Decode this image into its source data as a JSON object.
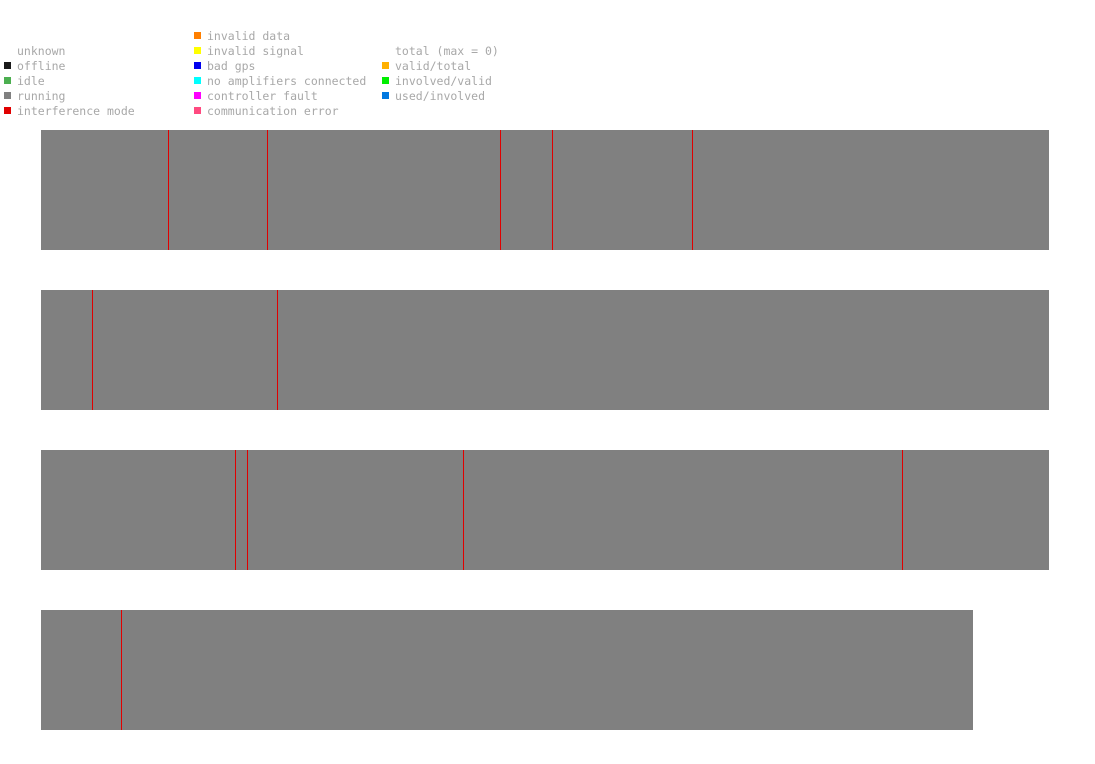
{
  "legend": {
    "status": [
      {
        "label": "unknown",
        "color": ""
      },
      {
        "label": "offline",
        "color": "#1a1a1a"
      },
      {
        "label": "idle",
        "color": "#4caf50"
      },
      {
        "label": "running",
        "color": "#808080"
      },
      {
        "label": "interference mode",
        "color": "#e00000"
      }
    ],
    "faults": [
      {
        "label": "invalid data",
        "color": "#ff7f00"
      },
      {
        "label": "invalid signal",
        "color": "#ffff00"
      },
      {
        "label": "bad gps",
        "color": "#0000ee"
      },
      {
        "label": "no amplifiers connected",
        "color": "#00ffff"
      },
      {
        "label": "controller fault",
        "color": "#ff00ff"
      },
      {
        "label": "communication error",
        "color": "#ff4a80"
      }
    ],
    "metrics": [
      {
        "label": "total (max = 0)",
        "color": ""
      },
      {
        "label": "valid/total",
        "color": "#ffb000"
      },
      {
        "label": "involved/valid",
        "color": "#00ee00"
      },
      {
        "label": "used/involved",
        "color": "#0078e0"
      }
    ]
  },
  "chart_data": {
    "type": "timeline",
    "state_color": "#808080",
    "event_color": "#e00000",
    "rows": [
      {
        "span": [
          0,
          1.0
        ],
        "state": "running",
        "events": [
          0.126,
          0.224,
          0.455,
          0.507,
          0.646
        ]
      },
      {
        "span": [
          0,
          1.0
        ],
        "state": "running",
        "events": [
          0.051,
          0.234
        ]
      },
      {
        "span": [
          0,
          1.0
        ],
        "state": "running",
        "events": [
          0.192,
          0.204,
          0.419,
          0.854
        ]
      },
      {
        "span": [
          0,
          0.925
        ],
        "state": "running",
        "events": [
          0.079
        ]
      }
    ]
  }
}
